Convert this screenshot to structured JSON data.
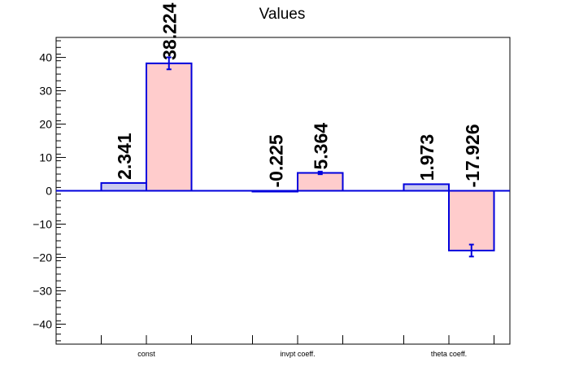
{
  "chart_data": {
    "type": "bar",
    "title": "Values",
    "xlabel": "",
    "ylabel": "",
    "ylim": [
      -46,
      46
    ],
    "y_ticks": [
      -40,
      -30,
      -20,
      -10,
      0,
      10,
      20,
      30,
      40
    ],
    "y_tick_labels": [
      "−40",
      "−30",
      "−20",
      "−10",
      "0",
      "10",
      "20",
      "30",
      "40"
    ],
    "categories": [
      "const",
      "invpt coeff.",
      "theta coeff."
    ],
    "grid": false,
    "legend": "none",
    "series": [
      {
        "values": [
          2.341,
          -0.225,
          1.973
        ],
        "labels": [
          "2.341",
          "-0.225",
          "1.973"
        ],
        "errors": [
          0,
          0,
          0
        ],
        "fill": "#ccccee",
        "stroke": "#0000dd"
      },
      {
        "values": [
          38.224,
          5.364,
          -17.926
        ],
        "labels": [
          "38.224",
          "5.364",
          "-17.926"
        ],
        "errors": [
          1.8,
          0.4,
          1.8
        ],
        "fill": "#ffcccc",
        "stroke": "#0000dd"
      }
    ],
    "colors": {
      "axis": "#000000",
      "bar_outline": "#0000dd",
      "zero_line": "#0000dd"
    }
  }
}
